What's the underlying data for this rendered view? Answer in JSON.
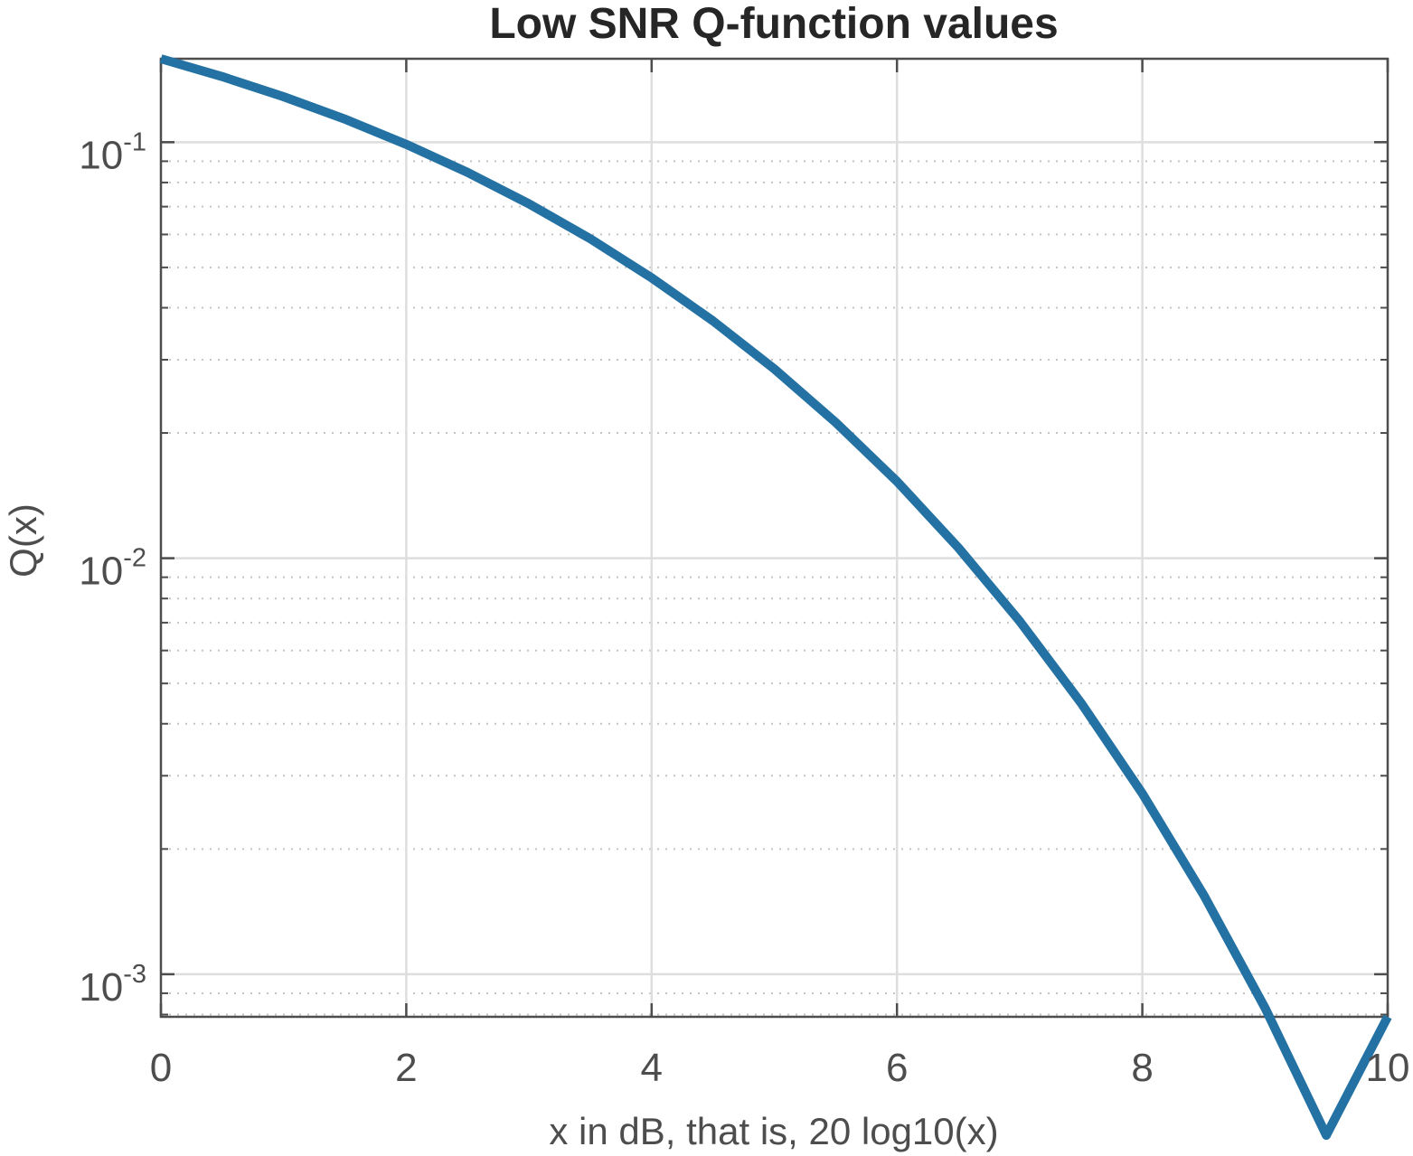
{
  "chart_data": {
    "type": "line",
    "title": "Low SNR Q-function values",
    "xlabel": "x in dB, that is, 20 log10(x)",
    "ylabel": "Q(x)",
    "xlim": [
      0,
      10
    ],
    "ylim": [
      0.00079,
      0.1587
    ],
    "yscale": "log",
    "grid": true,
    "minor_grid": true,
    "x_ticks": [
      0,
      2,
      4,
      6,
      8,
      10
    ],
    "x_tick_labels": [
      "0",
      "2",
      "4",
      "6",
      "8",
      "10"
    ],
    "y_ticks": [
      0.001,
      0.01,
      0.1
    ],
    "y_tick_labels": [
      {
        "base": "10",
        "exp": "-3"
      },
      {
        "base": "10",
        "exp": "-2"
      },
      {
        "base": "10",
        "exp": "-1"
      }
    ],
    "series": [
      {
        "color": "#2471a3",
        "x": [
          0,
          0.5,
          1,
          1.5,
          2,
          2.5,
          3,
          3.5,
          4,
          4.5,
          5,
          5.5,
          6,
          6.5,
          7,
          7.5,
          8,
          8.5,
          9,
          9.5,
          10
        ],
        "y": [
          0.1587,
          0.1437,
          0.1286,
          0.1136,
          0.0988,
          0.0846,
          0.0711,
          0.0586,
          0.0472,
          0.0372,
          0.0285,
          0.0212,
          0.0153,
          0.0106,
          0.00706,
          0.00449,
          0.00272,
          0.00155,
          0.00083,
          0.00041,
          0.00079
        ]
      }
    ]
  }
}
